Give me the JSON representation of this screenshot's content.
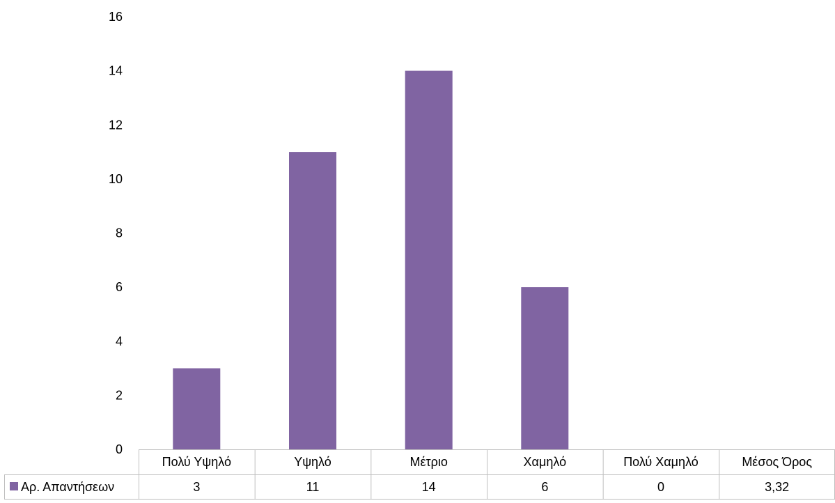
{
  "chart_data": {
    "type": "bar",
    "categories": [
      "Πολύ Υψηλό",
      "Υψηλό",
      "Μέτριο",
      "Χαμηλό",
      "Πολύ Χαμηλό",
      "Μέσος Όρος"
    ],
    "series": [
      {
        "name": "Αρ. Απαντήσεων",
        "values": [
          3,
          11,
          14,
          6,
          0,
          null
        ],
        "color": "#8064A2"
      }
    ],
    "table_values": [
      "3",
      "11",
      "14",
      "6",
      "0",
      "3,32"
    ],
    "ylim": [
      0,
      16
    ],
    "y_ticks": [
      0,
      2,
      4,
      6,
      8,
      10,
      12,
      14,
      16
    ],
    "grid": false,
    "legend": "data-table",
    "data_table": true,
    "colors": {
      "bar": "#8064A2",
      "table_border": "#BFBFBF"
    }
  }
}
